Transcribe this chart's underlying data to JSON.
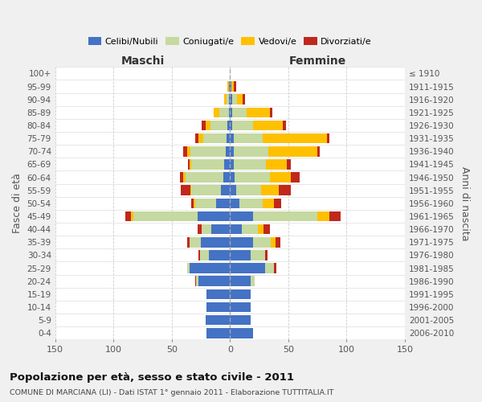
{
  "age_groups": [
    "0-4",
    "5-9",
    "10-14",
    "15-19",
    "20-24",
    "25-29",
    "30-34",
    "35-39",
    "40-44",
    "45-49",
    "50-54",
    "55-59",
    "60-64",
    "65-69",
    "70-74",
    "75-79",
    "80-84",
    "85-89",
    "90-94",
    "95-99",
    "100+"
  ],
  "birth_years": [
    "2006-2010",
    "2001-2005",
    "1996-2000",
    "1991-1995",
    "1986-1990",
    "1981-1985",
    "1976-1980",
    "1971-1975",
    "1966-1970",
    "1961-1965",
    "1956-1960",
    "1951-1955",
    "1946-1950",
    "1941-1945",
    "1936-1940",
    "1931-1935",
    "1926-1930",
    "1921-1925",
    "1916-1920",
    "1911-1915",
    "≤ 1910"
  ],
  "maschi": {
    "celibi": [
      20,
      21,
      20,
      20,
      27,
      35,
      18,
      25,
      16,
      28,
      12,
      8,
      6,
      5,
      4,
      3,
      2,
      1,
      1,
      1,
      0
    ],
    "coniugati": [
      0,
      0,
      0,
      0,
      2,
      2,
      8,
      10,
      8,
      55,
      18,
      25,
      32,
      28,
      30,
      20,
      15,
      8,
      2,
      0,
      0
    ],
    "vedovi": [
      0,
      0,
      0,
      0,
      0,
      0,
      0,
      0,
      0,
      2,
      1,
      1,
      2,
      2,
      3,
      4,
      4,
      5,
      2,
      1,
      0
    ],
    "divorziati": [
      0,
      0,
      0,
      0,
      1,
      0,
      1,
      2,
      4,
      5,
      2,
      8,
      3,
      1,
      3,
      3,
      3,
      0,
      0,
      0,
      0
    ]
  },
  "femmine": {
    "nubili": [
      20,
      18,
      18,
      18,
      18,
      30,
      18,
      20,
      10,
      20,
      8,
      5,
      4,
      3,
      3,
      3,
      2,
      2,
      2,
      1,
      0
    ],
    "coniugate": [
      0,
      0,
      0,
      0,
      3,
      8,
      12,
      15,
      14,
      55,
      20,
      22,
      30,
      28,
      30,
      25,
      18,
      12,
      4,
      0,
      0
    ],
    "vedove": [
      0,
      0,
      0,
      0,
      0,
      0,
      0,
      4,
      5,
      10,
      10,
      15,
      18,
      18,
      42,
      55,
      25,
      20,
      5,
      2,
      0
    ],
    "divorziate": [
      0,
      0,
      0,
      0,
      0,
      2,
      2,
      4,
      5,
      10,
      6,
      10,
      8,
      3,
      2,
      2,
      3,
      2,
      2,
      2,
      0
    ]
  },
  "colors": {
    "celibi": "#4472c4",
    "coniugati": "#c5d9a0",
    "vedovi": "#ffc000",
    "divorziati": "#c0281c"
  },
  "xlim": 150,
  "title": "Popolazione per età, sesso e stato civile - 2011",
  "subtitle": "COMUNE DI MARCIANA (LI) - Dati ISTAT 1° gennaio 2011 - Elaborazione TUTTITALIA.IT",
  "xlabel_left": "Maschi",
  "xlabel_right": "Femmine",
  "ylabel": "Fasce di età",
  "ylabel_right": "Anni di nascita",
  "legend_labels": [
    "Celibi/Nubili",
    "Coniugati/e",
    "Vedovi/e",
    "Divorziati/e"
  ],
  "bg_color": "#f0f0f0",
  "plot_bg": "#ffffff"
}
